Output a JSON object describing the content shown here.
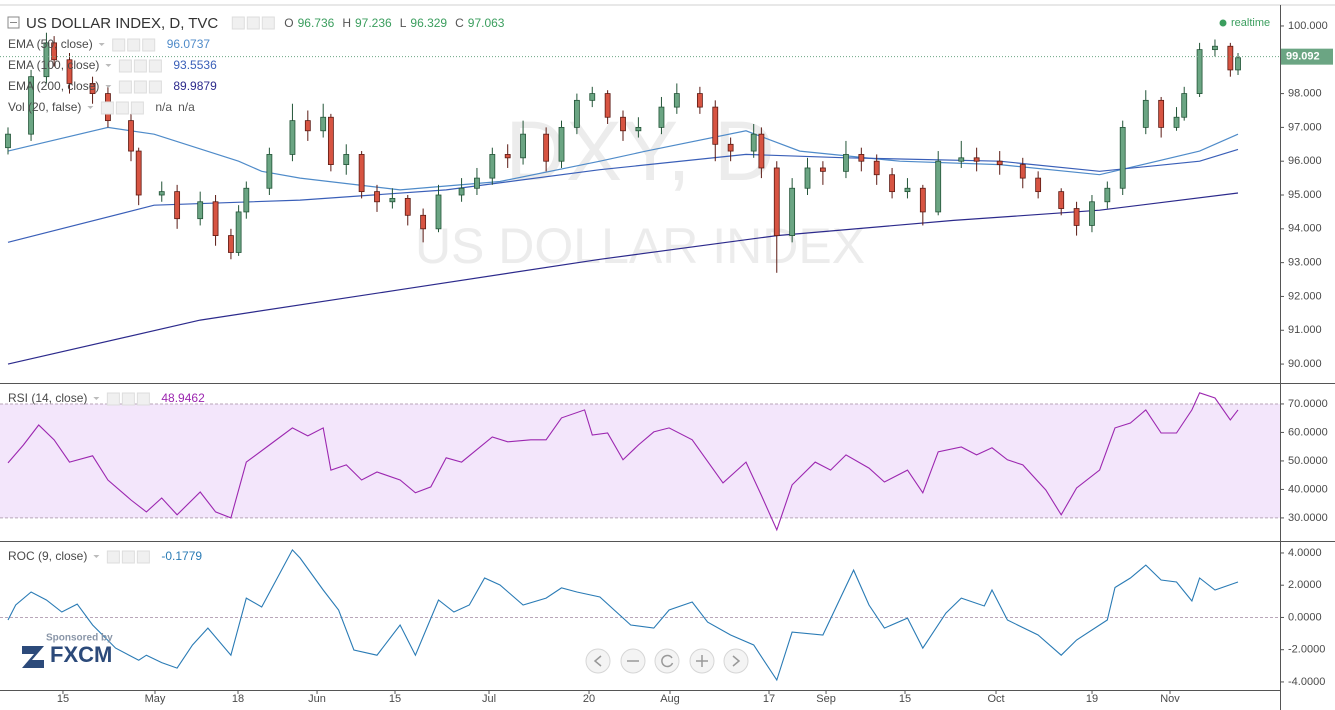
{
  "chart_data": [
    {
      "type": "candlestick",
      "title": "US DOLLAR INDEX, D, TVC",
      "ohlc": [
        {
          "label": "O",
          "value": 96.736
        },
        {
          "label": "H",
          "value": 97.236
        },
        {
          "label": "L",
          "value": 96.329
        },
        {
          "label": "C",
          "value": 97.063
        }
      ],
      "x": [
        0,
        3,
        5,
        6,
        8,
        11,
        13,
        16,
        17,
        20,
        22,
        25,
        27,
        29,
        30,
        31,
        34,
        37,
        39,
        41,
        42,
        44,
        46,
        48,
        50,
        52,
        54,
        56,
        59,
        61,
        63,
        65,
        67,
        70,
        72,
        74,
        76,
        78,
        80,
        82,
        85,
        87,
        90,
        92,
        94,
        97,
        98,
        100,
        102,
        104,
        106,
        109,
        111,
        113,
        115,
        117,
        119,
        121,
        124,
        126,
        129,
        132,
        134,
        137,
        139,
        141,
        143,
        145,
        148,
        150,
        152,
        153,
        155,
        157,
        159,
        160
      ],
      "open": [
        96.4,
        96.8,
        98.5,
        99.5,
        99.0,
        98.3,
        98.0,
        97.2,
        96.3,
        95.0,
        95.1,
        94.3,
        94.8,
        93.8,
        93.3,
        94.5,
        95.2,
        96.2,
        97.2,
        96.9,
        97.3,
        95.9,
        96.2,
        95.1,
        94.8,
        94.9,
        94.4,
        94.0,
        95.0,
        95.2,
        95.5,
        96.2,
        96.1,
        96.8,
        96.0,
        97.0,
        97.8,
        98.0,
        97.3,
        96.9,
        97.0,
        97.6,
        98.0,
        97.6,
        96.5,
        96.3,
        96.8,
        95.8,
        93.8,
        95.2,
        95.8,
        95.7,
        96.2,
        96.0,
        95.6,
        95.1,
        95.2,
        94.5,
        96.0,
        96.1,
        96.0,
        95.9,
        95.5,
        95.1,
        94.6,
        94.1,
        94.8,
        95.2,
        97.0,
        97.8,
        97.0,
        97.3,
        98.0,
        99.3,
        99.4,
        98.7
      ],
      "high": [
        97.0,
        98.7,
        99.8,
        99.7,
        99.2,
        98.5,
        98.2,
        97.4,
        96.4,
        95.4,
        95.3,
        95.1,
        95.0,
        94.0,
        94.7,
        95.4,
        96.4,
        97.7,
        97.5,
        97.7,
        97.4,
        96.5,
        96.3,
        95.3,
        95.2,
        95.0,
        94.6,
        95.3,
        95.5,
        95.8,
        96.4,
        96.5,
        97.2,
        97.0,
        97.2,
        98.0,
        98.2,
        98.1,
        97.5,
        97.3,
        97.9,
        98.3,
        98.2,
        97.8,
        96.7,
        97.1,
        97.0,
        96.0,
        95.5,
        96.1,
        96.0,
        96.6,
        96.4,
        96.2,
        95.8,
        95.5,
        95.3,
        96.3,
        96.6,
        96.4,
        96.3,
        96.1,
        95.7,
        95.2,
        94.8,
        95.0,
        95.4,
        97.2,
        98.1,
        97.9,
        97.6,
        98.2,
        99.5,
        99.6,
        99.5,
        99.2
      ],
      "low": [
        96.2,
        96.6,
        98.3,
        98.8,
        98.0,
        97.7,
        97.0,
        96.0,
        94.7,
        94.8,
        94.0,
        94.1,
        93.5,
        93.1,
        93.2,
        94.3,
        95.0,
        96.0,
        96.6,
        96.7,
        95.7,
        95.6,
        94.9,
        94.5,
        94.6,
        94.1,
        93.6,
        93.9,
        94.8,
        95.0,
        95.3,
        95.8,
        95.9,
        95.7,
        95.8,
        96.8,
        97.6,
        97.1,
        96.6,
        96.7,
        96.8,
        97.4,
        97.4,
        96.0,
        96.0,
        96.1,
        95.5,
        92.7,
        93.6,
        95.0,
        95.3,
        95.5,
        95.7,
        95.3,
        94.9,
        94.9,
        94.1,
        94.4,
        95.8,
        95.7,
        95.6,
        95.2,
        94.9,
        94.4,
        93.8,
        93.9,
        94.6,
        95.0,
        96.8,
        96.7,
        96.9,
        97.2,
        97.9,
        99.1,
        98.5,
        98.55
      ],
      "close": [
        96.8,
        98.5,
        99.5,
        99.0,
        98.3,
        98.0,
        97.2,
        96.3,
        95.0,
        95.1,
        94.3,
        94.8,
        93.8,
        93.3,
        94.5,
        95.2,
        96.2,
        97.2,
        96.9,
        97.3,
        95.9,
        96.2,
        95.1,
        94.8,
        94.9,
        94.4,
        94.0,
        95.0,
        95.2,
        95.5,
        96.2,
        96.1,
        96.8,
        96.0,
        97.0,
        97.8,
        98.0,
        97.3,
        96.9,
        97.0,
        97.6,
        98.0,
        97.6,
        96.5,
        96.3,
        96.8,
        95.8,
        93.8,
        95.2,
        95.8,
        95.7,
        96.2,
        96.0,
        95.6,
        95.1,
        95.2,
        94.5,
        96.0,
        96.1,
        96.0,
        95.9,
        95.5,
        95.1,
        94.6,
        94.1,
        94.8,
        95.2,
        97.0,
        97.8,
        97.0,
        97.3,
        98.0,
        99.3,
        99.4,
        98.7,
        99.06
      ],
      "up_color": "#6ba583",
      "down_color": "#d75442",
      "overlays": [
        {
          "name": "EMA (50, close)",
          "value": 96.0737,
          "color": "#4f8bc9",
          "x": [
            0,
            13,
            19,
            30,
            33,
            38,
            51,
            64,
            77,
            83,
            96,
            103,
            116,
            129,
            142,
            155,
            160
          ],
          "values": [
            96.3,
            97.0,
            96.8,
            96.0,
            95.7,
            95.5,
            95.15,
            95.4,
            96.0,
            96.3,
            96.9,
            96.3,
            96.0,
            95.9,
            95.6,
            96.3,
            96.8
          ]
        },
        {
          "name": "EMA (100, close)",
          "value": 93.5536,
          "color": "#3a5fb8",
          "x": [
            0,
            19,
            38,
            57,
            77,
            96,
            109,
            129,
            142,
            155,
            160
          ],
          "values": [
            93.6,
            94.7,
            94.85,
            95.15,
            95.75,
            96.2,
            96.1,
            96.0,
            95.7,
            96.0,
            96.35
          ]
        },
        {
          "name": "EMA (200, close)",
          "value": 89.9879,
          "color": "#2c2a8c",
          "x": [
            0,
            25,
            51,
            77,
            100,
            123,
            142,
            160
          ],
          "values": [
            90.0,
            91.3,
            92.2,
            93.1,
            93.8,
            94.25,
            94.55,
            95.06
          ]
        }
      ],
      "volume_legend": {
        "name": "Vol (20, false)",
        "values": [
          "n/a",
          "n/a"
        ]
      },
      "last_price": 99.092,
      "watermark": {
        "symbol": "DXY, D",
        "name": "US DOLLAR INDEX"
      },
      "status": "realtime",
      "xlim": [
        -1.04,
        165.46
      ],
      "ylim": [
        89.44,
        100.62
      ],
      "yticks": [
        {
          "value": 100,
          "label": "100.000"
        },
        {
          "value": 99,
          "label": "99.000"
        },
        {
          "value": 98,
          "label": "98.000"
        },
        {
          "value": 97,
          "label": "97.000"
        },
        {
          "value": 96,
          "label": "96.000"
        },
        {
          "value": 95,
          "label": "95.000"
        },
        {
          "value": 94,
          "label": "94.000"
        },
        {
          "value": 93,
          "label": "93.000"
        },
        {
          "value": 92,
          "label": "92.000"
        },
        {
          "value": 91,
          "label": "91.000"
        },
        {
          "value": 90,
          "label": "90.000"
        }
      ],
      "grid": false
    },
    {
      "type": "line",
      "name": "RSI (14, close)",
      "last_value": 48.9462,
      "color": "#9c27b0",
      "band": {
        "from": 30,
        "to": 70,
        "color": "#f3e6fb"
      },
      "reference_lines": [
        30,
        70
      ],
      "x": [
        0,
        2,
        4,
        6,
        8,
        11,
        13,
        16,
        18,
        20,
        22,
        25,
        27,
        29,
        31,
        34,
        37,
        39,
        41,
        42,
        44,
        46,
        48,
        51,
        53,
        55,
        57,
        59,
        63,
        65,
        68,
        70,
        72,
        75,
        76,
        78,
        80,
        82,
        84,
        86,
        89,
        93,
        96,
        98,
        100,
        102,
        105,
        107,
        109,
        112,
        114,
        117,
        119,
        121,
        124,
        126,
        128,
        130,
        132,
        135,
        137,
        139,
        142,
        144,
        146,
        148,
        150,
        152,
        154,
        155,
        157,
        159,
        160
      ],
      "values": [
        49.3,
        55.6,
        62.6,
        57.4,
        49.6,
        51.8,
        43.3,
        36.3,
        32.1,
        37.0,
        31.1,
        39.1,
        32.1,
        30.0,
        49.6,
        55.6,
        61.6,
        58.8,
        61.6,
        46.8,
        48.6,
        43.3,
        46.1,
        43.3,
        38.8,
        40.9,
        51.1,
        49.6,
        58.4,
        56.7,
        57.4,
        57.4,
        65.1,
        67.9,
        59.1,
        59.8,
        50.4,
        55.6,
        60.2,
        61.6,
        57.4,
        42.3,
        49.6,
        37.9,
        25.8,
        41.6,
        49.6,
        46.8,
        52.1,
        47.5,
        42.6,
        46.8,
        38.8,
        53.2,
        54.9,
        52.1,
        54.6,
        50.4,
        48.6,
        39.8,
        31.1,
        40.5,
        46.8,
        61.6,
        63.3,
        67.9,
        59.8,
        59.8,
        67.9,
        73.9,
        72.1,
        64.4,
        67.9
      ],
      "xlim": [
        -1.04,
        165.46
      ],
      "ylim": [
        21.9,
        77.0
      ],
      "yticks": [
        {
          "value": 70,
          "label": "70.0000"
        },
        {
          "value": 60,
          "label": "60.0000"
        },
        {
          "value": 50,
          "label": "50.0000"
        },
        {
          "value": 40,
          "label": "40.0000"
        },
        {
          "value": 30,
          "label": "30.0000"
        }
      ],
      "grid": false
    },
    {
      "type": "line",
      "name": "ROC (9, close)",
      "last_value": -0.1779,
      "color": "#2a7bb5",
      "reference_lines": [
        0
      ],
      "x": [
        0,
        1,
        3,
        5,
        7,
        9,
        11,
        14,
        17,
        18,
        20,
        22,
        24,
        26,
        29,
        31,
        33,
        37,
        38,
        41,
        43,
        45,
        48,
        51,
        53,
        56,
        58,
        60,
        62,
        64,
        67,
        70,
        72,
        74,
        77,
        81,
        84,
        86,
        89,
        91,
        94,
        97,
        100,
        102,
        106,
        110,
        112,
        114,
        117,
        119,
        122,
        124,
        127,
        128,
        130,
        134,
        137,
        139,
        143,
        144,
        146,
        148,
        150,
        152,
        154,
        155,
        157,
        160
      ],
      "values": [
        -0.16,
        0.77,
        1.58,
        1.08,
        0.34,
        0.83,
        -0.47,
        -1.9,
        -2.65,
        -2.34,
        -2.8,
        -3.14,
        -1.71,
        -0.66,
        -2.34,
        1.2,
        0.65,
        4.19,
        3.69,
        1.7,
        0.46,
        -2.02,
        -2.34,
        -0.47,
        -2.34,
        1.08,
        0.34,
        0.77,
        2.45,
        2.01,
        0.77,
        1.2,
        1.83,
        1.58,
        1.27,
        -0.47,
        -0.66,
        0.46,
        0.96,
        -0.29,
        -1.09,
        -1.71,
        -3.88,
        -0.91,
        -1.09,
        2.94,
        0.77,
        -0.66,
        -0.04,
        -1.9,
        0.27,
        1.2,
        0.71,
        1.7,
        -0.16,
        -1.09,
        -2.34,
        -1.4,
        -0.16,
        1.86,
        2.45,
        3.25,
        2.32,
        2.2,
        1.02,
        2.45,
        1.7,
        2.2
      ],
      "xlim": [
        -1.04,
        165.46
      ],
      "ylim": [
        -4.5,
        4.68
      ],
      "yticks": [
        {
          "value": 4,
          "label": "4.0000"
        },
        {
          "value": 2,
          "label": "2.0000"
        },
        {
          "value": 0,
          "label": "0.0000"
        },
        {
          "value": -2,
          "label": "-2.0000"
        },
        {
          "value": -4,
          "label": "-4.0000"
        }
      ],
      "xticks": [
        {
          "value": 7.15,
          "label": "15"
        },
        {
          "value": 19.12,
          "label": "May"
        },
        {
          "value": 29.92,
          "label": "18"
        },
        {
          "value": 40.2,
          "label": "Jun"
        },
        {
          "value": 50.34,
          "label": "15"
        },
        {
          "value": 62.57,
          "label": "Jul"
        },
        {
          "value": 75.58,
          "label": "20"
        },
        {
          "value": 86.11,
          "label": "Aug"
        },
        {
          "value": 98.99,
          "label": "17"
        },
        {
          "value": 106.41,
          "label": "Sep"
        },
        {
          "value": 116.68,
          "label": "15"
        },
        {
          "value": 128.52,
          "label": "Oct"
        },
        {
          "value": 141.01,
          "label": "19"
        },
        {
          "value": 151.15,
          "label": "Nov"
        }
      ],
      "grid": false
    }
  ],
  "sponsor": {
    "caption": "Sponsored by",
    "brand": "FXCM"
  }
}
